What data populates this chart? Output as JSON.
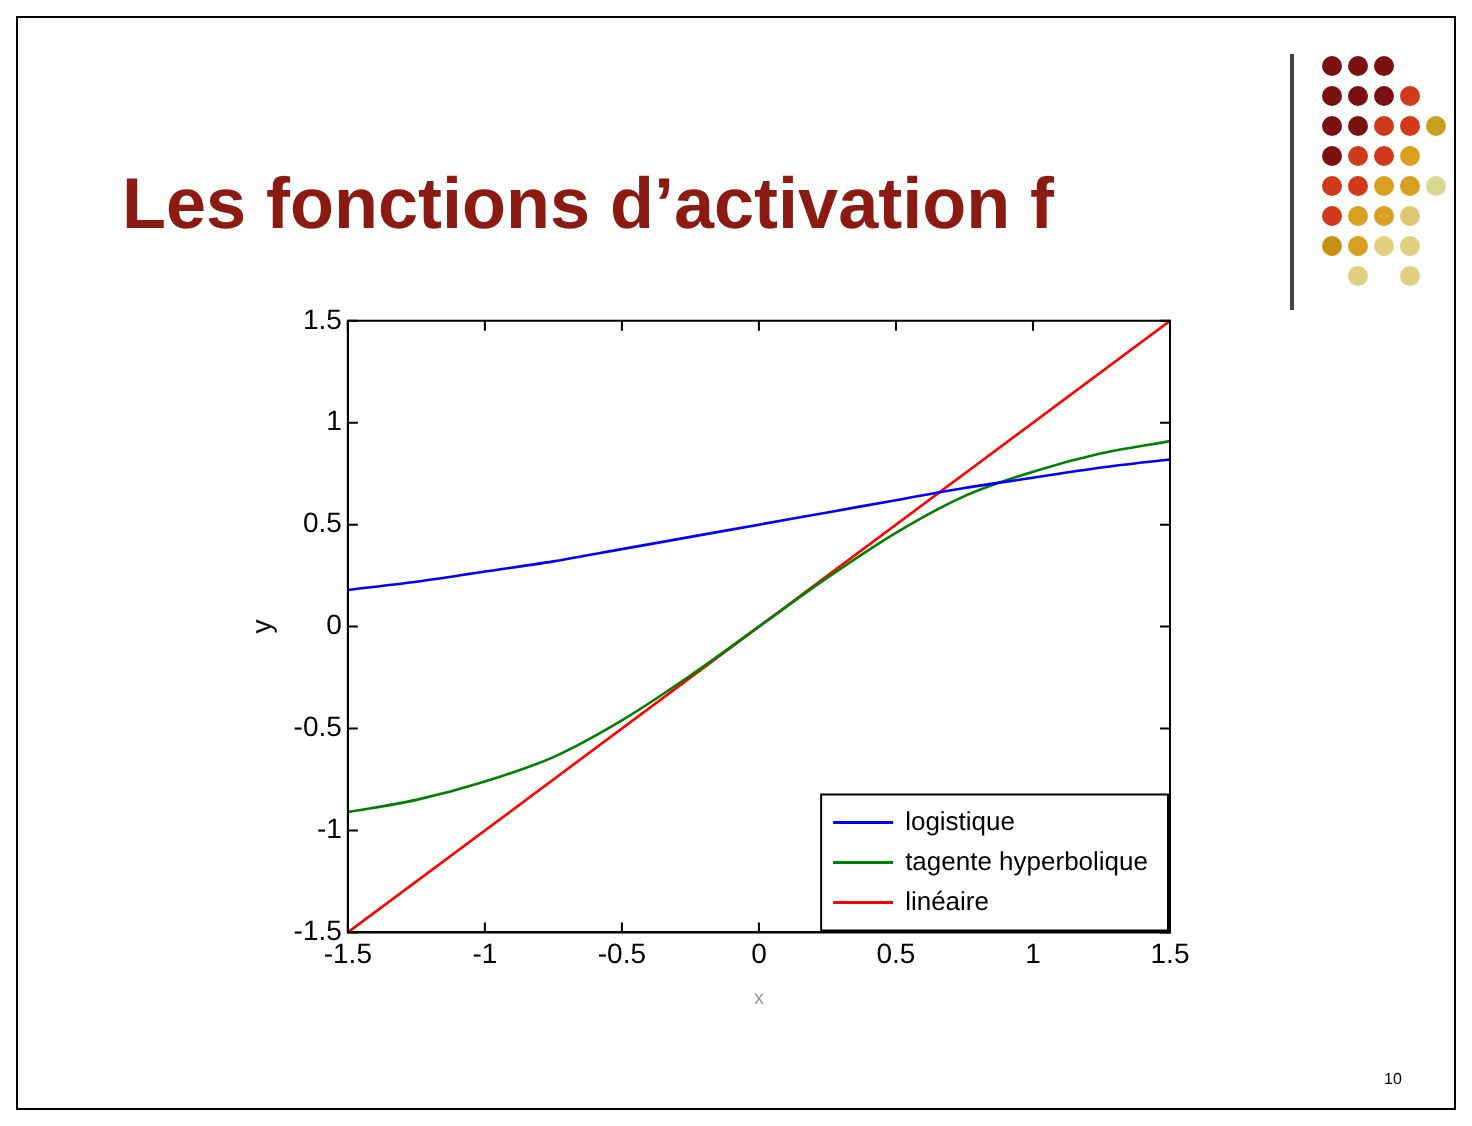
{
  "chart_data": {
    "type": "line",
    "title": "Les fonctions d’activation f",
    "xlabel": "x",
    "ylabel": "y",
    "xlim": [
      -1.5,
      1.5
    ],
    "ylim": [
      -1.5,
      1.5
    ],
    "xticks": [
      -1.5,
      -1,
      -0.5,
      0,
      0.5,
      1,
      1.5
    ],
    "yticks": [
      -1.5,
      -1,
      -0.5,
      0,
      0.5,
      1,
      1.5
    ],
    "grid": false,
    "legend": "bottom right",
    "marker": "none",
    "line_style": "solid",
    "annotations": [
      "10"
    ],
    "series": [
      {
        "name": "logistique",
        "color": "#0000ff",
        "x": [
          -1.5,
          -1.25,
          -1,
          -0.75,
          -0.5,
          -0.25,
          0,
          0.25,
          0.5,
          0.75,
          1,
          1.25,
          1.5
        ],
        "values": [
          0.18,
          0.22,
          0.27,
          0.32,
          0.38,
          0.44,
          0.5,
          0.56,
          0.62,
          0.68,
          0.73,
          0.78,
          0.82
        ]
      },
      {
        "name": "tagente hyperbolique",
        "color": "#008000",
        "x": [
          -1.5,
          -1.25,
          -1,
          -0.75,
          -0.5,
          -0.25,
          0,
          0.25,
          0.5,
          0.75,
          1,
          1.25,
          1.5
        ],
        "values": [
          -0.91,
          -0.85,
          -0.76,
          -0.64,
          -0.46,
          -0.24,
          0,
          0.24,
          0.46,
          0.64,
          0.76,
          0.85,
          0.91
        ]
      },
      {
        "name": "linéaire",
        "color": "#ff0000",
        "x": [
          -1.5,
          1.5
        ],
        "values": [
          -1.5,
          1.5
        ]
      }
    ]
  }
}
